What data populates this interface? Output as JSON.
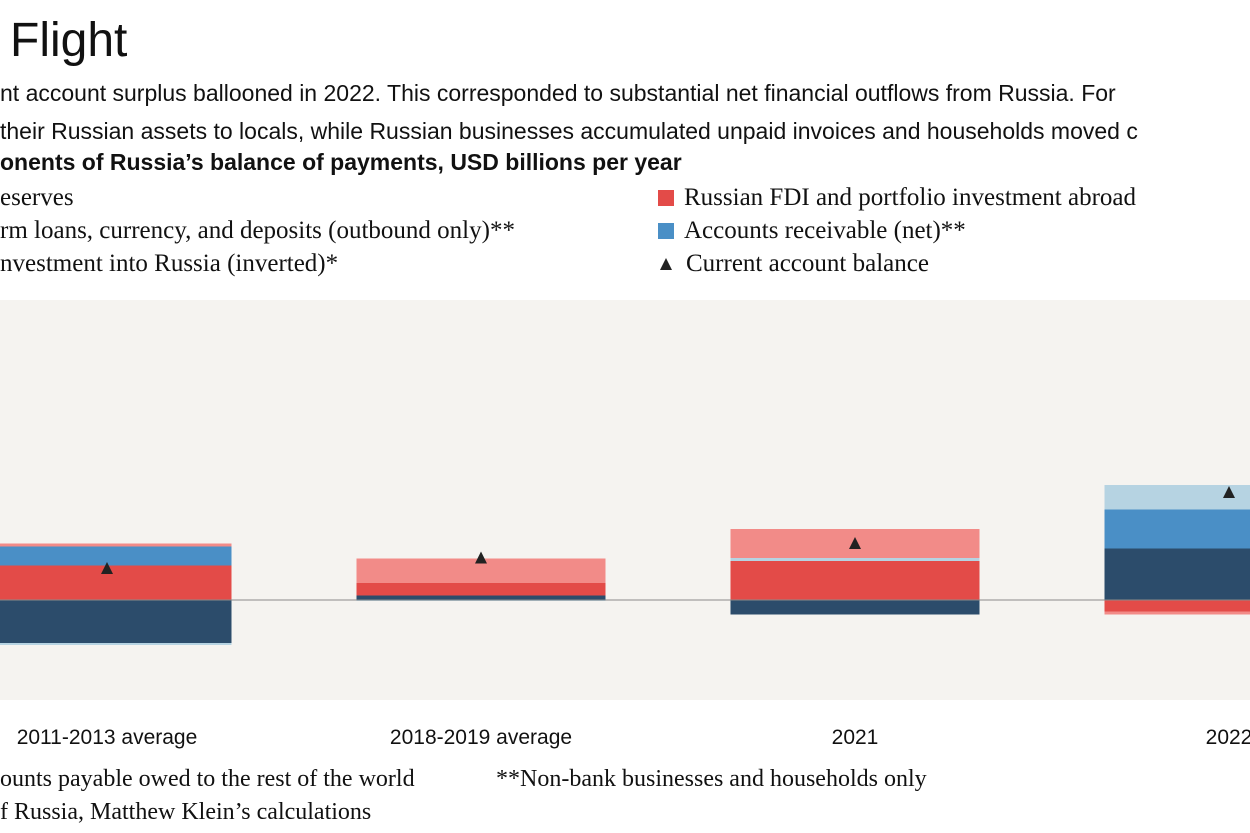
{
  "title": "Flight",
  "subtitle": [
    "nt account surplus ballooned in 2022. This corresponded to substantial net financial outflows from Russia. For",
    " their Russian assets to locals, while Russian businesses accumulated unpaid invoices and households moved c"
  ],
  "colors": {
    "plot_background": "#f5f3f0",
    "zero_line": "#8a8a8a",
    "marker": "#222222"
  },
  "legend": [
    {
      "label": "eserves",
      "color": "#2c4c6b",
      "icon": "square-swatch"
    },
    {
      "label": "rm loans, currency, and deposits (outbound only)**",
      "color": "#b6d3e2",
      "icon": "square-swatch"
    },
    {
      "label": "nvestment into Russia (inverted)*",
      "color": "#f28b88",
      "icon": "square-swatch"
    },
    {
      "label": "Russian FDI and portfolio investment abroad",
      "color": "#e34b48",
      "icon": "square-swatch"
    },
    {
      "label": "Accounts receivable (net)**",
      "color": "#4a8fc6",
      "icon": "square-swatch"
    },
    {
      "label": "Current account balance",
      "color": "#222222",
      "icon": "triangle-marker"
    }
  ],
  "chart_data": {
    "type": "bar",
    "title": "onents of Russia’s balance of payments, USD billions per year",
    "categories": [
      "2011-2013 average",
      "2018-2019 average",
      "2021",
      "2022"
    ],
    "ylim": [
      -200,
      600
    ],
    "stacked": true,
    "series": [
      {
        "name": "eserves",
        "color": "#2c4c6b",
        "values": [
          -86,
          9,
          -29,
          103
        ]
      },
      {
        "name": "Russian FDI and portfolio investment abroad",
        "color": "#e34b48",
        "values": [
          69,
          25,
          78,
          -23
        ]
      },
      {
        "name": "Accounts receivable (net)**",
        "color": "#4a8fc6",
        "values": [
          38,
          0,
          0,
          78
        ]
      },
      {
        "name": "rm loans, currency, and deposits (outbound only)**",
        "color": "#b6d3e2",
        "values": [
          -4,
          -2,
          6,
          49
        ]
      },
      {
        "name": "nvestment into Russia (inverted)*",
        "color": "#f28b88",
        "values": [
          6,
          49,
          58,
          -6
        ]
      }
    ],
    "markers": {
      "name": "Current account balance",
      "values": [
        62,
        83,
        112,
        214
      ]
    }
  },
  "footnotes": [
    "ounts payable owed to the rest of the world",
    "**Non-bank businesses and households only",
    "f Russia, Matthew Klein’s calculations"
  ]
}
